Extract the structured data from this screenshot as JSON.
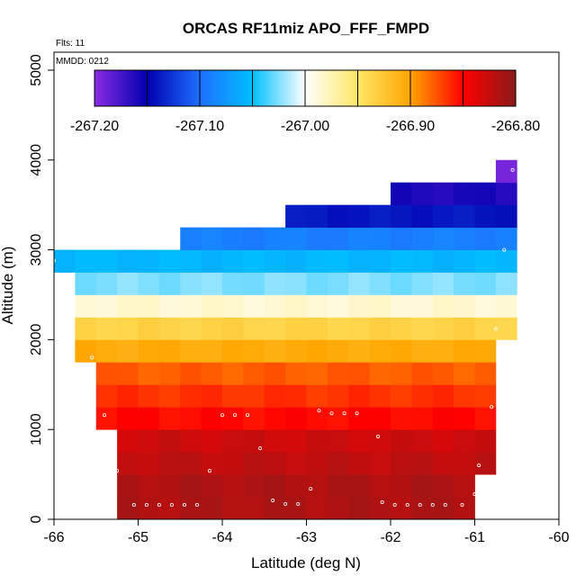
{
  "chart_data": {
    "type": "heatmap",
    "title": "ORCAS RF11miz APO_FFF_FMPD",
    "xlabel": "Latitude (deg N)",
    "ylabel": "Altitude (m)",
    "xlim": [
      -66,
      -60
    ],
    "ylim": [
      0,
      5200
    ],
    "x_ticks": [
      -66,
      -65,
      -64,
      -63,
      -62,
      -61,
      -60
    ],
    "x_tick_labels": [
      "-66",
      "-65",
      "-64",
      "-63",
      "-62",
      "-61",
      "-60"
    ],
    "y_ticks": [
      0,
      1000,
      2000,
      3000,
      4000,
      5000
    ],
    "y_tick_labels": [
      "0",
      "1000",
      "2000",
      "3000",
      "4000",
      "5000"
    ],
    "annotations": [
      "Flts: 11",
      "MMDD: 0212"
    ],
    "cell_width_deg": 0.25,
    "cell_height_m": 250,
    "colorbar": {
      "min": -267.2,
      "max": -266.8,
      "ticks": [
        -267.2,
        -267.1,
        -267.0,
        -266.9,
        -266.8
      ],
      "tick_labels": [
        "-267.20",
        "-267.10",
        "-267.00",
        "-266.90",
        "-266.80"
      ],
      "colors": [
        "#8a2be2",
        "#0000b0",
        "#1e6fff",
        "#00bfff",
        "#ffffff",
        "#ffe766",
        "#ffa500",
        "#ff0000",
        "#8b1a1a"
      ]
    },
    "rows": [
      {
        "z": 125,
        "x_start": -65.25,
        "x_end": -61.0,
        "value": -266.815
      },
      {
        "z": 375,
        "x_start": -65.25,
        "x_end": -61.0,
        "value": -266.815
      },
      {
        "z": 625,
        "x_start": -65.25,
        "x_end": -60.75,
        "value": -266.822
      },
      {
        "z": 875,
        "x_start": -65.25,
        "x_end": -60.75,
        "value": -266.828
      },
      {
        "z": 1125,
        "x_start": -65.5,
        "x_end": -60.75,
        "value": -266.852
      },
      {
        "z": 1375,
        "x_start": -65.5,
        "x_end": -60.75,
        "value": -266.865
      },
      {
        "z": 1625,
        "x_start": -65.5,
        "x_end": -60.75,
        "value": -266.878
      },
      {
        "z": 1875,
        "x_start": -65.75,
        "x_end": -60.75,
        "value": -266.905
      },
      {
        "z": 2125,
        "x_start": -65.75,
        "x_end": -60.5,
        "value": -266.935
      },
      {
        "z": 2375,
        "x_start": -65.75,
        "x_end": -60.5,
        "value": -266.985
      },
      {
        "z": 2625,
        "x_start": -65.75,
        "x_end": -60.5,
        "value": -267.025
      },
      {
        "z": 2875,
        "x_start": -66.0,
        "x_end": -60.5,
        "value": -267.055
      },
      {
        "z": 3125,
        "x_start": -64.5,
        "x_end": -60.5,
        "value": -267.09
      },
      {
        "z": 3375,
        "x_start": -63.25,
        "x_end": -60.5,
        "value": -267.14
      },
      {
        "z": 3625,
        "x_start": -62.0,
        "x_end": -60.5,
        "value": -267.16
      },
      {
        "z": 3875,
        "x_start": -60.75,
        "x_end": -60.5,
        "value": -267.195
      }
    ],
    "points": [
      [
        -65.05,
        160
      ],
      [
        -64.9,
        160
      ],
      [
        -64.75,
        160
      ],
      [
        -64.6,
        160
      ],
      [
        -64.45,
        160
      ],
      [
        -64.3,
        160
      ],
      [
        -63.4,
        210
      ],
      [
        -63.25,
        170
      ],
      [
        -63.1,
        170
      ],
      [
        -62.95,
        340
      ],
      [
        -62.1,
        190
      ],
      [
        -61.95,
        160
      ],
      [
        -61.8,
        160
      ],
      [
        -61.65,
        160
      ],
      [
        -61.5,
        160
      ],
      [
        -61.35,
        160
      ],
      [
        -61.15,
        160
      ],
      [
        -61.0,
        280
      ],
      [
        -60.95,
        600
      ],
      [
        -65.25,
        540
      ],
      [
        -64.15,
        540
      ],
      [
        -63.55,
        790
      ],
      [
        -62.15,
        920
      ],
      [
        -65.4,
        1160
      ],
      [
        -64.0,
        1160
      ],
      [
        -63.85,
        1160
      ],
      [
        -63.7,
        1160
      ],
      [
        -62.85,
        1210
      ],
      [
        -62.7,
        1180
      ],
      [
        -62.55,
        1180
      ],
      [
        -62.4,
        1180
      ],
      [
        -60.8,
        1250
      ],
      [
        -65.55,
        1800
      ],
      [
        -60.75,
        2120
      ],
      [
        -66.0,
        2880
      ],
      [
        -60.65,
        3000
      ],
      [
        -60.55,
        3890
      ]
    ]
  }
}
